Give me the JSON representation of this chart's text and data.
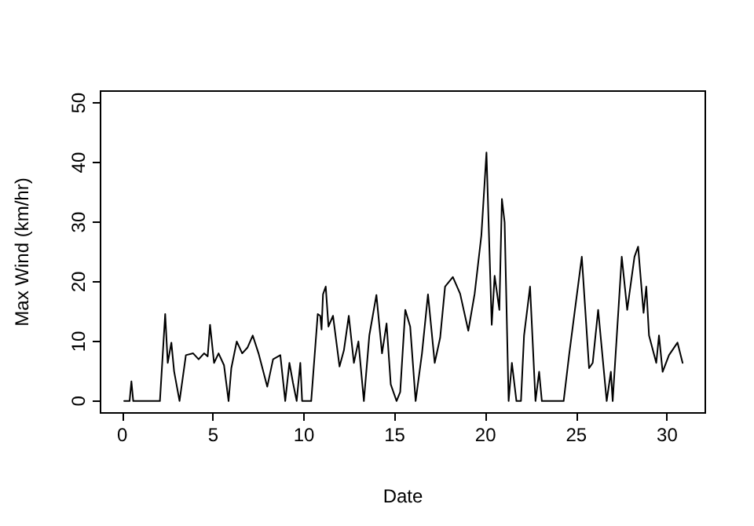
{
  "chart_data": {
    "type": "line",
    "xlabel": "Date",
    "ylabel": "Max Wind (km/hr)",
    "xlim": [
      -1.2,
      32.1
    ],
    "ylim": [
      -2,
      52
    ],
    "xticks": [
      0,
      5,
      10,
      15,
      20,
      25,
      30
    ],
    "yticks": [
      0,
      10,
      20,
      30,
      40,
      50
    ],
    "grid": false,
    "marker": "none",
    "line_style": "solid",
    "series": [
      {
        "color": "#000000",
        "x": [
          0.1,
          0.4,
          0.5,
          0.6,
          1.0,
          1.5,
          2.07,
          2.36,
          2.5,
          2.7,
          2.85,
          3.15,
          3.5,
          3.9,
          4.2,
          4.5,
          4.7,
          4.83,
          5.05,
          5.3,
          5.6,
          5.85,
          6.0,
          6.3,
          6.6,
          6.9,
          7.18,
          7.5,
          7.98,
          8.3,
          8.7,
          8.97,
          9.2,
          9.4,
          9.6,
          9.8,
          9.9,
          10.4,
          10.76,
          10.9,
          10.97,
          11.05,
          11.2,
          11.35,
          11.6,
          11.96,
          12.2,
          12.47,
          12.75,
          13.0,
          13.3,
          13.6,
          13.99,
          14.3,
          14.55,
          14.78,
          15.1,
          15.3,
          15.58,
          15.85,
          16.15,
          16.5,
          16.83,
          17.2,
          17.5,
          17.77,
          18.2,
          18.6,
          19.05,
          19.4,
          19.77,
          20.05,
          20.34,
          20.5,
          20.76,
          20.9,
          21.05,
          21.27,
          21.45,
          21.7,
          21.95,
          22.12,
          22.45,
          22.75,
          22.95,
          23.1,
          24.3,
          24.6,
          24.9,
          25.3,
          25.7,
          25.9,
          26.2,
          26.67,
          26.9,
          27.0,
          27.5,
          27.8,
          28.2,
          28.4,
          28.7,
          28.85,
          29.0,
          29.4,
          29.55,
          29.75,
          30.1,
          30.57,
          30.85
        ],
        "values": [
          0,
          0,
          3.3,
          0,
          0,
          0,
          0,
          14.6,
          6.4,
          9.8,
          5,
          0,
          7.7,
          8,
          7,
          8,
          7.5,
          12.8,
          6.4,
          8,
          6,
          0,
          5.5,
          10,
          8,
          9,
          11,
          8,
          2.4,
          7,
          7.7,
          0,
          6.4,
          3,
          0,
          6.4,
          0,
          0,
          14.6,
          14.3,
          12,
          17.9,
          19.2,
          12.5,
          14.3,
          5.8,
          8.5,
          14.3,
          6.4,
          10,
          0,
          11,
          17.8,
          8,
          13,
          2.8,
          0,
          1.5,
          15.3,
          12.5,
          0,
          8,
          17.9,
          6.4,
          10.6,
          19.2,
          20.8,
          18,
          11.8,
          18,
          27.8,
          41.7,
          12.8,
          21,
          15.3,
          33.9,
          30,
          0,
          6.4,
          0,
          0,
          11,
          19.2,
          0,
          4.9,
          0,
          0,
          7.7,
          14.8,
          24.2,
          5.5,
          6.4,
          15.3,
          0,
          4.9,
          0,
          24.2,
          15.3,
          24.2,
          25.9,
          14.8,
          19.2,
          11,
          6.4,
          11,
          4.9,
          7.7,
          9.8,
          6.4
        ]
      }
    ]
  }
}
